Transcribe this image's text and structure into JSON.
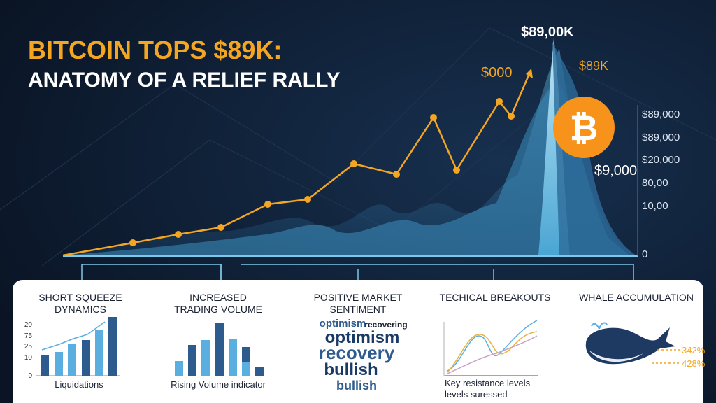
{
  "title": {
    "line1": "BITCOIN TOPS $89K:",
    "line2": "ANATOMY OF A RELIEF RALLY"
  },
  "annotations": [
    "$89,00K",
    "$000",
    "$89K",
    "$9,000"
  ],
  "axis_labels": [
    "$89,000",
    "$89,000",
    "$20,000",
    "80,00",
    "10,00",
    "0"
  ],
  "panels": [
    {
      "title": [
        "SHORT SQUEEZE",
        "DYNAMICS"
      ],
      "ticks": [
        "20",
        "75",
        "25",
        "10",
        "0"
      ],
      "caption": [
        "Liquidations"
      ]
    },
    {
      "title": [
        "INCREASED",
        "TRADING VOLUME"
      ],
      "caption": [
        "Rising Volume indicator"
      ]
    },
    {
      "title": [
        "POSITIVE MARKET",
        "SENTIMENT"
      ],
      "words": [
        "optimism",
        "recovering",
        "optimism",
        "recovery",
        "bullish",
        "bullish"
      ]
    },
    {
      "title": [
        "TECHICAL BREAKOUTS"
      ],
      "caption": [
        "Key resistance levels",
        "levels suressed"
      ]
    },
    {
      "title": [
        "WHALE ACCUMULATION"
      ],
      "labels": [
        "342%",
        "428%"
      ]
    }
  ]
}
